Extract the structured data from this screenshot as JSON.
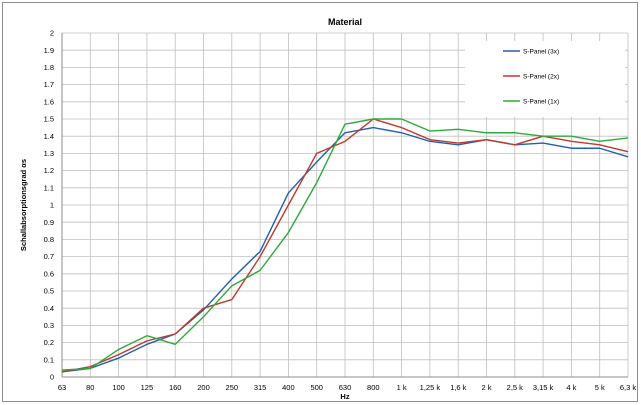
{
  "chart_data": {
    "type": "line",
    "title": "Material",
    "xlabel": "Hz",
    "ylabel": "Schallabsorptionsgrad αs",
    "categories": [
      "63",
      "80",
      "100",
      "125",
      "160",
      "200",
      "250",
      "315",
      "400",
      "500",
      "630",
      "800",
      "1 k",
      "1,25 k",
      "1,6 k",
      "2 k",
      "2,5 k",
      "3,15 k",
      "4 k",
      "5 k",
      "6,3 k"
    ],
    "ylim": [
      0,
      2
    ],
    "yticks": [
      "0",
      "0.1",
      "0.2",
      "0.3",
      "0.4",
      "0.5",
      "0.6",
      "0.7",
      "0.8",
      "0.9",
      "1",
      "1.1",
      "1.2",
      "1.3",
      "1.4",
      "1.5",
      "1.6",
      "1.7",
      "1.8",
      "1.9",
      "2"
    ],
    "grid": true,
    "legend_position": "top-right",
    "series": [
      {
        "name": "S-Panel (3x)",
        "color": "#1f5fb4",
        "values": [
          0.03,
          0.05,
          0.11,
          0.19,
          0.25,
          0.39,
          0.57,
          0.73,
          1.07,
          1.25,
          1.42,
          1.45,
          1.42,
          1.37,
          1.35,
          1.38,
          1.35,
          1.36,
          1.33,
          1.33,
          1.28
        ]
      },
      {
        "name": "S-Panel (2x)",
        "color": "#c0392b",
        "values": [
          0.03,
          0.06,
          0.13,
          0.21,
          0.25,
          0.4,
          0.45,
          0.7,
          1.0,
          1.3,
          1.37,
          1.5,
          1.45,
          1.38,
          1.36,
          1.38,
          1.35,
          1.4,
          1.37,
          1.35,
          1.31
        ]
      },
      {
        "name": "S-Panel (1x)",
        "color": "#2eaa3c",
        "values": [
          0.04,
          0.05,
          0.16,
          0.24,
          0.19,
          0.35,
          0.53,
          0.62,
          0.84,
          1.13,
          1.47,
          1.5,
          1.5,
          1.43,
          1.44,
          1.42,
          1.42,
          1.4,
          1.4,
          1.37,
          1.39
        ]
      }
    ]
  }
}
